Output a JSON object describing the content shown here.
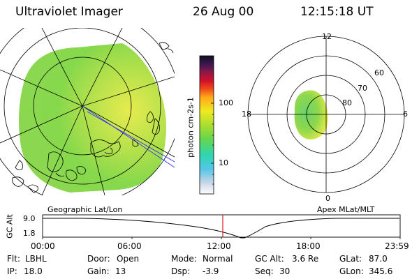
{
  "header": {
    "instrument": "Ultraviolet Imager",
    "date": "26 Aug 00",
    "time": "12:15:18 UT"
  },
  "colorbar": {
    "unit_label": "photon cm-2s-1",
    "tick_100": "100",
    "tick_10": "10"
  },
  "panels": {
    "left_caption": "Geographic Lat/Lon",
    "right_caption": "Apex MLat/MLT"
  },
  "polar_plot": {
    "mlt_12": "12",
    "mlt_18": "18",
    "mlt_6": "6",
    "mlt_0": "0",
    "lat_60": "60",
    "lat_70": "70",
    "lat_80": "80"
  },
  "altitude_plot": {
    "ylabel": "GC Alt",
    "y_top": "9.0",
    "y_bottom": "1.8",
    "x_ticks": [
      "00:00",
      "06:00",
      "12:00",
      "18:00",
      "23:59"
    ],
    "current_time_marker_color": "#d21a1a"
  },
  "info": {
    "flt_label": "Flt:",
    "flt_value": "LBHL",
    "ip_label": "IP:",
    "ip_value": "18.0",
    "door_label": "Door:",
    "door_value": "Open",
    "gain_label": "Gain:",
    "gain_value": "13",
    "mode_label": "Mode:",
    "mode_value": "Normal",
    "dsp_label": "Dsp:",
    "dsp_value": "-3.9",
    "gcalt_label": "GC Alt:",
    "gcalt_value": "3.6 Re",
    "seq_label": "Seq:",
    "seq_value": "30",
    "glat_label": "GLat:",
    "glat_value": "87.0",
    "glon_label": "GLon:",
    "glon_value": "345.6"
  },
  "colors": {
    "image_green": "#84d84a",
    "image_yellow": "#d8e84a",
    "oval_green": "#6cd26a",
    "oval_yellow": "#e6ea4a",
    "map_line": "#000000",
    "marker": "#d21a1a"
  }
}
